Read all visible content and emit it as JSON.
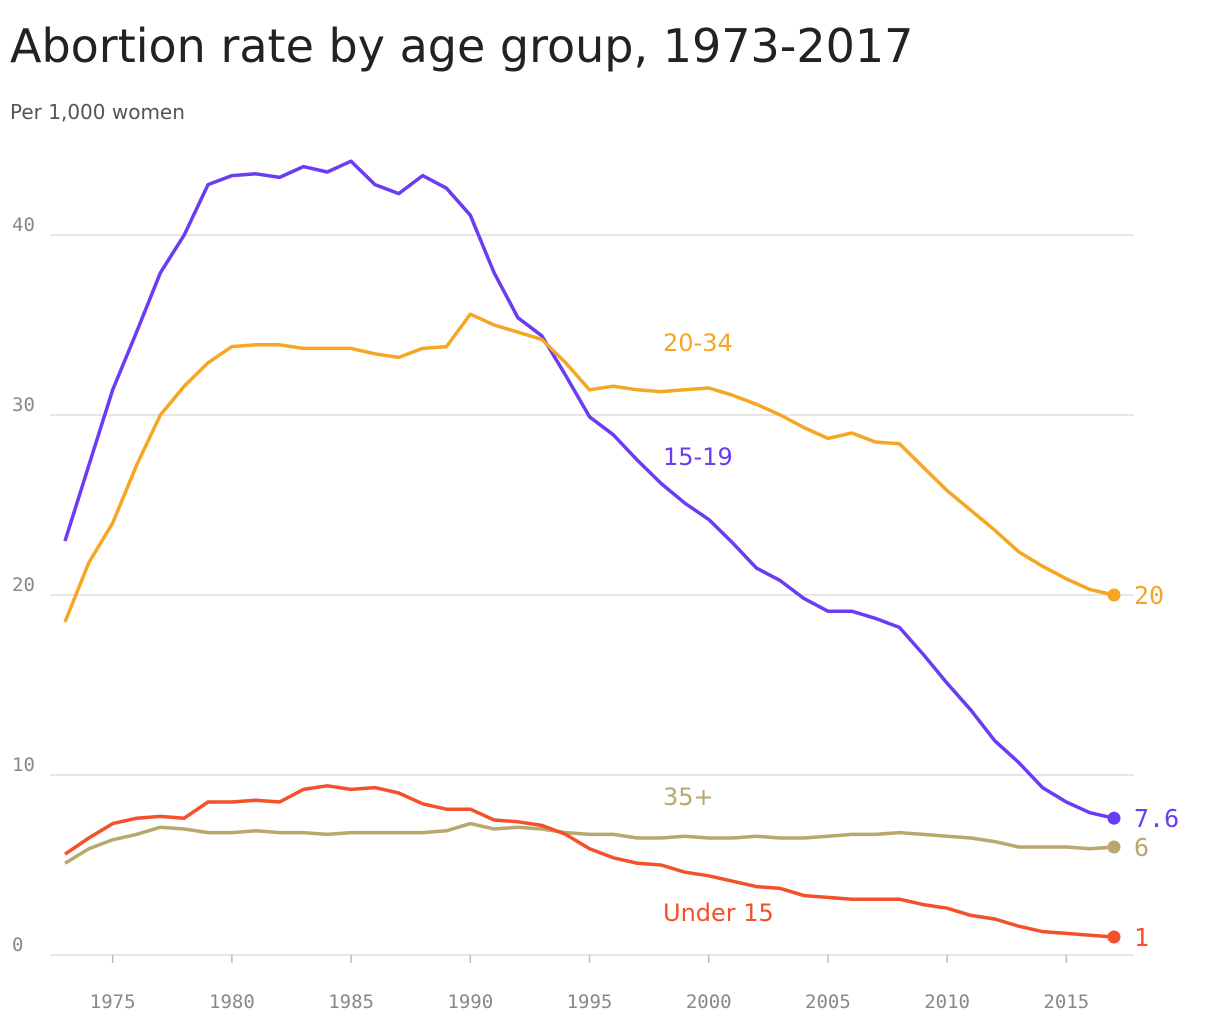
{
  "chart_data": {
    "type": "line",
    "title": "Abortion rate by age group, 1973-2017",
    "subtitle": "Per 1,000 women",
    "x": [
      1973,
      1974,
      1975,
      1976,
      1977,
      1978,
      1979,
      1980,
      1981,
      1982,
      1983,
      1984,
      1985,
      1986,
      1987,
      1988,
      1989,
      1990,
      1991,
      1992,
      1993,
      1994,
      1995,
      1996,
      1997,
      1998,
      1999,
      2000,
      2001,
      2002,
      2003,
      2004,
      2005,
      2006,
      2007,
      2008,
      2009,
      2010,
      2011,
      2012,
      2013,
      2014,
      2015,
      2016,
      2017
    ],
    "series": [
      {
        "name": "15-19",
        "color": "#6a3cf2",
        "values": [
          23.0,
          27.2,
          31.4,
          34.6,
          37.9,
          40.0,
          42.8,
          43.3,
          43.4,
          43.2,
          43.8,
          43.5,
          44.1,
          42.8,
          42.3,
          43.3,
          42.6,
          41.1,
          37.9,
          35.4,
          34.4,
          32.2,
          29.9,
          28.9,
          27.5,
          26.2,
          25.1,
          24.2,
          22.9,
          21.5,
          20.8,
          19.8,
          19.1,
          19.1,
          18.7,
          18.2,
          16.7,
          15.1,
          13.6,
          11.9,
          10.7,
          9.3,
          8.5,
          7.9,
          7.6
        ]
      },
      {
        "name": "20-34",
        "color": "#f5a623",
        "values": [
          18.5,
          21.8,
          24.0,
          27.2,
          30.0,
          31.6,
          32.9,
          33.8,
          33.9,
          33.9,
          33.7,
          33.7,
          33.7,
          33.4,
          33.2,
          33.7,
          33.8,
          35.6,
          35.0,
          34.6,
          34.2,
          32.9,
          31.4,
          31.6,
          31.4,
          31.3,
          31.4,
          31.5,
          31.1,
          30.6,
          30.0,
          29.3,
          28.7,
          29.0,
          28.5,
          28.4,
          27.1,
          25.8,
          24.7,
          23.6,
          22.4,
          21.6,
          20.9,
          20.3,
          20
        ]
      },
      {
        "name": "35+",
        "color": "#b8a86e",
        "values": [
          5.1,
          5.9,
          6.4,
          6.7,
          7.1,
          7.0,
          6.8,
          6.8,
          6.9,
          6.8,
          6.8,
          6.7,
          6.8,
          6.8,
          6.8,
          6.8,
          6.9,
          7.3,
          7.0,
          7.1,
          7.0,
          6.8,
          6.7,
          6.7,
          6.5,
          6.5,
          6.6,
          6.5,
          6.5,
          6.6,
          6.5,
          6.5,
          6.6,
          6.7,
          6.7,
          6.8,
          6.7,
          6.6,
          6.5,
          6.3,
          6.0,
          6.0,
          6.0,
          5.9,
          6
        ]
      },
      {
        "name": "Under 15",
        "color": "#f4512a",
        "values": [
          5.6,
          6.5,
          7.3,
          7.6,
          7.7,
          7.6,
          8.5,
          8.5,
          8.6,
          8.5,
          9.2,
          9.4,
          9.2,
          9.3,
          9.0,
          8.4,
          8.1,
          8.1,
          7.5,
          7.4,
          7.2,
          6.7,
          5.9,
          5.4,
          5.1,
          5.0,
          4.6,
          4.4,
          4.1,
          3.8,
          3.7,
          3.3,
          3.2,
          3.1,
          3.1,
          3.1,
          2.8,
          2.6,
          2.2,
          2.0,
          1.6,
          1.3,
          1.2,
          1.1,
          1
        ]
      }
    ],
    "xlim": [
      1973,
      2017
    ],
    "xticks": [
      1975,
      1980,
      1985,
      1990,
      1995,
      2000,
      2005,
      2010,
      2015
    ],
    "ylim": [
      0,
      45
    ],
    "yticks": [
      0,
      10,
      20,
      30,
      40
    ],
    "grid": true
  }
}
